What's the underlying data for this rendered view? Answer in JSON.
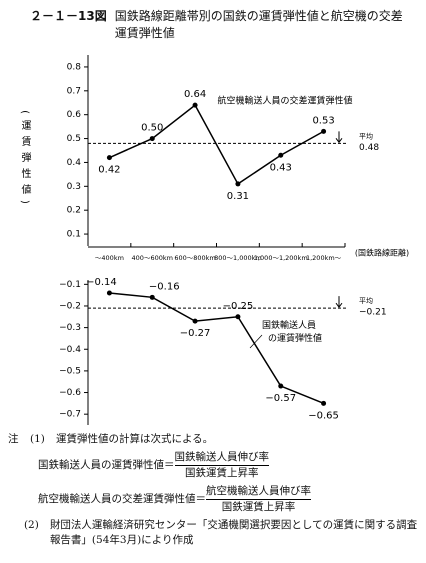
{
  "figure": {
    "number": "２－１－13図",
    "title": "国鉄路線距離帯別の国鉄の運賃弾性値と航空機の交差運賃弾性値"
  },
  "chart_data": [
    {
      "type": "line",
      "ylabel": "(運賃弾性値)",
      "xlabel": "(国鉄路線距離)",
      "categories": [
        "～400km",
        "400～600km",
        "600～800km",
        "800～1,000km",
        "1,000～1,200km",
        "1,200km～"
      ],
      "series": [
        {
          "name": "航空機輸送人員の交差運賃弾性値",
          "color": "#000000",
          "values": [
            0.42,
            0.5,
            0.64,
            0.31,
            0.43,
            0.53
          ],
          "value_labels": [
            "0.42",
            "0.50",
            "0.64",
            "0.31",
            "0.43",
            "0.53"
          ]
        }
      ],
      "mean": {
        "label": "平均",
        "value": 0.48
      },
      "ylim": [
        0.05,
        0.85
      ],
      "yticks": [
        0.1,
        0.2,
        0.3,
        0.4,
        0.5,
        0.6,
        0.7,
        0.8
      ]
    },
    {
      "type": "line",
      "series": [
        {
          "name": "国鉄輸送人員の運賃弾性値",
          "color": "#000000",
          "values": [
            -0.14,
            -0.16,
            -0.27,
            -0.25,
            -0.57,
            -0.65
          ],
          "value_labels": [
            "−0.14",
            "−0.16",
            "−0.27",
            "−0.25",
            "−0.57",
            "−0.65"
          ]
        }
      ],
      "mean": {
        "label": "平均",
        "value": -0.21,
        "value_label": "−0.21"
      },
      "ylim": [
        -0.75,
        -0.08
      ],
      "yticks": [
        {
          "value": -0.1,
          "label": "−0.1"
        },
        {
          "value": -0.2,
          "label": "−0.2"
        },
        {
          "value": -0.3,
          "label": "−0.3"
        },
        {
          "value": -0.4,
          "label": "−0.4"
        },
        {
          "value": -0.5,
          "label": "−0.5"
        },
        {
          "value": -0.6,
          "label": "−0.6"
        },
        {
          "value": -0.7,
          "label": "−0.7"
        }
      ]
    }
  ],
  "notes": {
    "marker": "注",
    "items": [
      {
        "num": "(1)",
        "text": "運賃弾性値の計算は次式による。",
        "formulas": [
          {
            "lhs": "国鉄輸送人員の運賃弾性値＝",
            "numerator": "国鉄輸送人員伸び率",
            "denominator": "国鉄運賃上昇率"
          },
          {
            "lhs": "航空機輸送人員の交差運賃弾性値＝",
            "numerator": "航空機輸送人員伸び率",
            "denominator": "国鉄運賃上昇率"
          }
        ]
      },
      {
        "num": "(2)",
        "text": "財団法人運輸経済研究センター「交通機関選択要因としての運賃に関する調査報告書」(54年3月)により作成"
      }
    ]
  }
}
